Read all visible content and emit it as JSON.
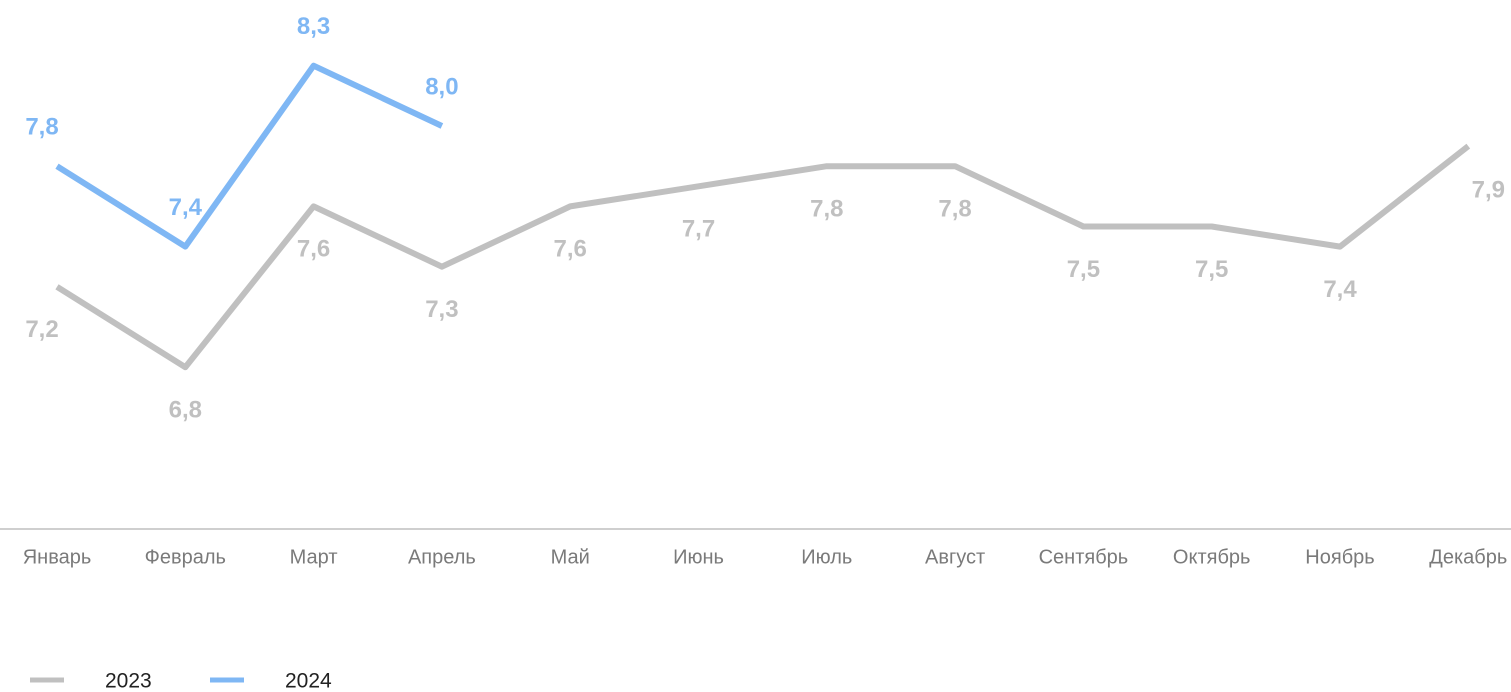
{
  "chart_data": {
    "type": "line",
    "categories": [
      "Январь",
      "Февраль",
      "Март",
      "Апрель",
      "Май",
      "Июнь",
      "Июль",
      "Август",
      "Сентябрь",
      "Октябрь",
      "Ноябрь",
      "Декабрь"
    ],
    "series": [
      {
        "name": "2023",
        "color": "#c0c0c0",
        "values": [
          7.2,
          6.8,
          7.6,
          7.3,
          7.6,
          7.7,
          7.8,
          7.8,
          7.5,
          7.5,
          7.4,
          7.9
        ],
        "value_labels": [
          "7,2",
          "6,8",
          "7,6",
          "7,3",
          "7,6",
          "7,7",
          "7,8",
          "7,8",
          "7,5",
          "7,5",
          "7,4",
          "7,9"
        ]
      },
      {
        "name": "2024",
        "color": "#7fb7f4",
        "values": [
          7.8,
          7.4,
          8.3,
          8.0,
          null,
          null,
          null,
          null,
          null,
          null,
          null,
          null
        ],
        "value_labels": [
          "7,8",
          "7,4",
          "8,3",
          "8,0",
          null,
          null,
          null,
          null,
          null,
          null,
          null,
          null
        ]
      }
    ],
    "ylim": [
      6,
      8.6
    ]
  }
}
